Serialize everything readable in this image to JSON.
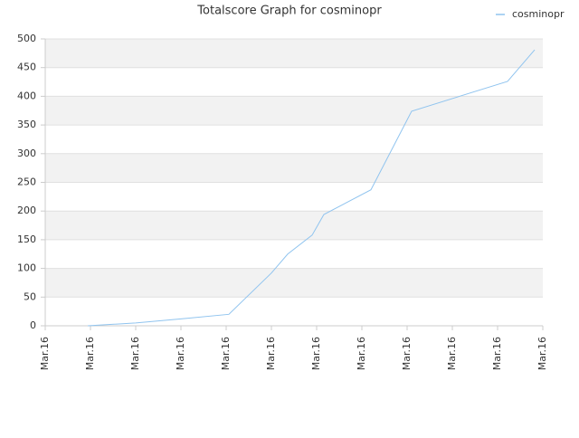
{
  "chart_data": {
    "type": "line",
    "title": "Totalscore Graph for cosminopr",
    "xlim": [
      0,
      11
    ],
    "xticks": [
      {
        "value": 0,
        "label": "Mar.16"
      },
      {
        "value": 1,
        "label": "Mar.16"
      },
      {
        "value": 2,
        "label": "Mar.16"
      },
      {
        "value": 3,
        "label": "Mar.16"
      },
      {
        "value": 4,
        "label": "Mar.16"
      },
      {
        "value": 5,
        "label": "Mar.16"
      },
      {
        "value": 6,
        "label": "Mar.16"
      },
      {
        "value": 7,
        "label": "Mar.16"
      },
      {
        "value": 8,
        "label": "Mar.16"
      },
      {
        "value": 9,
        "label": "Mar.16"
      },
      {
        "value": 10,
        "label": "Mar.16"
      },
      {
        "value": 11,
        "label": "Mar.16"
      }
    ],
    "ylim": [
      0,
      500
    ],
    "yticks": [
      0,
      50,
      100,
      150,
      200,
      250,
      300,
      350,
      400,
      450,
      500
    ],
    "grid": true,
    "legend": "top-right",
    "series": [
      {
        "name": "cosminopr",
        "color": "#90c4ef",
        "x": [
          0.94,
          2.0,
          3.0,
          4.06,
          5.0,
          5.36,
          5.9,
          6.16,
          7.2,
          8.1,
          10.22,
          10.82
        ],
        "values": [
          0,
          5,
          12,
          20,
          92,
          125,
          158,
          194,
          237,
          374,
          426,
          481
        ]
      }
    ]
  }
}
